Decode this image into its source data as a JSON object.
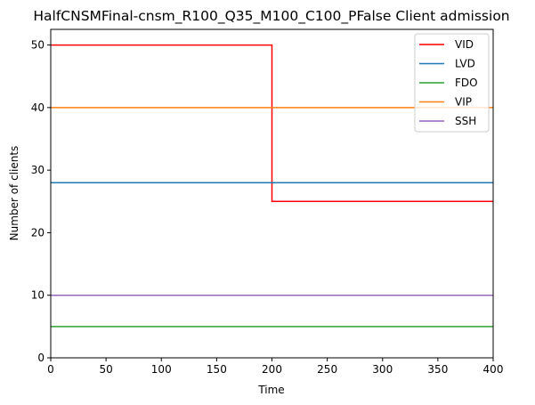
{
  "chart_data": {
    "type": "line",
    "title": "HalfCNSMFinal-cnsm_R100_Q35_M100_C100_PFalse Client admission",
    "xlabel": "Time",
    "ylabel": "Number of clients",
    "xlim": [
      0,
      400
    ],
    "ylim": [
      0,
      52.5
    ],
    "xticks": [
      0,
      50,
      100,
      150,
      200,
      250,
      300,
      350,
      400
    ],
    "yticks": [
      0,
      10,
      20,
      30,
      40,
      50
    ],
    "grid": false,
    "legend_position": "top-right",
    "series": [
      {
        "name": "VID",
        "color": "#ff0000",
        "step": "post",
        "x": [
          0,
          200,
          400
        ],
        "y": [
          50,
          25,
          25
        ]
      },
      {
        "name": "LVD",
        "color": "#1f77b4",
        "step": "post",
        "x": [
          0,
          400
        ],
        "y": [
          28,
          28
        ]
      },
      {
        "name": "FDO",
        "color": "#2ca02c",
        "step": "post",
        "x": [
          0,
          400
        ],
        "y": [
          5,
          5
        ]
      },
      {
        "name": "VIP",
        "color": "#ff7f0e",
        "step": "post",
        "x": [
          0,
          400
        ],
        "y": [
          40,
          40
        ]
      },
      {
        "name": "SSH",
        "color": "#9467bd",
        "step": "post",
        "x": [
          0,
          400
        ],
        "y": [
          10,
          10
        ]
      }
    ]
  }
}
